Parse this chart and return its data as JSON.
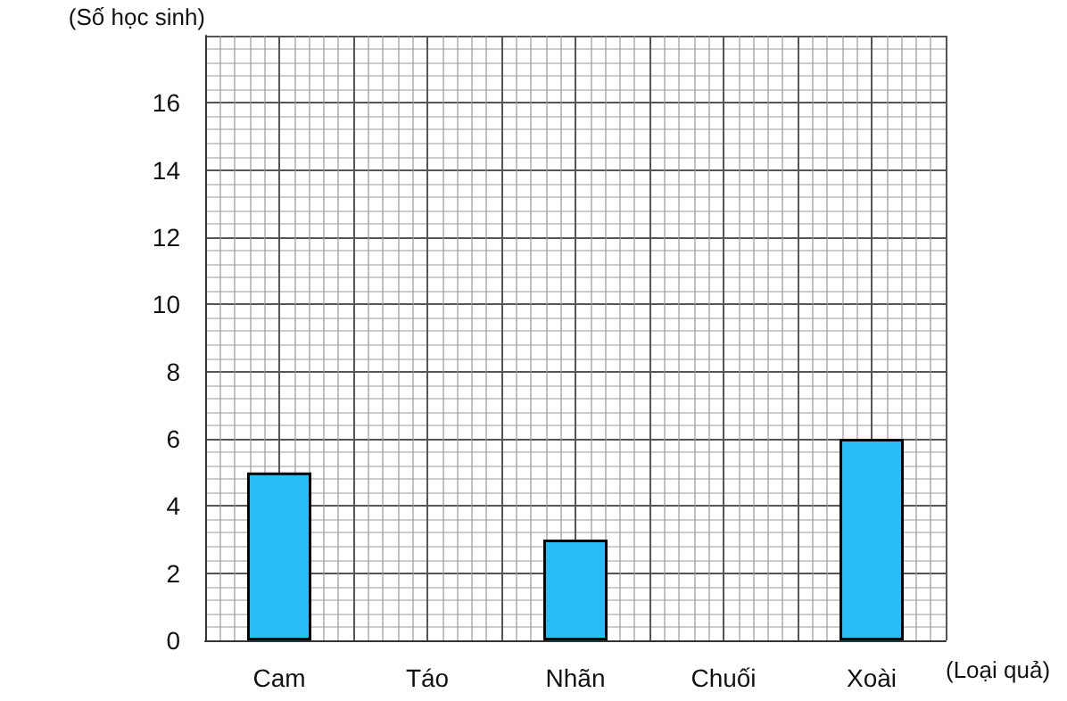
{
  "chart_data": {
    "type": "bar",
    "xlabel": "(Loại quả)",
    "ylabel": "(Số học sinh)",
    "categories": [
      "Cam",
      "Táo",
      "Nhãn",
      "Chuối",
      "Xoài"
    ],
    "values": [
      5,
      null,
      3,
      null,
      6
    ],
    "color": "#29bdf5",
    "ylim": [
      0,
      18
    ],
    "yticks": [
      0,
      2,
      4,
      6,
      8,
      10,
      12,
      14,
      16
    ],
    "grid": true
  }
}
